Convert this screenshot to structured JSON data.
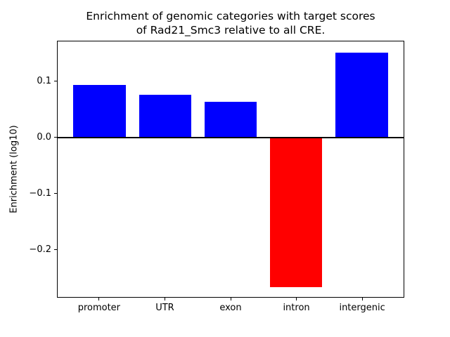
{
  "chart_data": {
    "type": "bar",
    "title": "Enrichment of genomic categories with target scores\nof Rad21_Smc3 relative to all CRE.",
    "title_lines": [
      "Enrichment of genomic categories with target scores",
      "of Rad21_Smc3 relative to all CRE."
    ],
    "xlabel": "",
    "ylabel": "Enrichment (log10)",
    "categories": [
      "promoter",
      "UTR",
      "exon",
      "intron",
      "intergenic"
    ],
    "values": [
      0.094,
      0.076,
      0.064,
      -0.267,
      0.152
    ],
    "bar_colors": [
      "#0000ff",
      "#0000ff",
      "#0000ff",
      "#ff0000",
      "#0000ff"
    ],
    "positive_color": "#0000ff",
    "negative_color": "#ff0000",
    "ylim": [
      -0.285,
      0.172
    ],
    "xlim": [
      -0.64,
      4.64
    ],
    "bar_width": 0.8,
    "yticks": [
      {
        "value": 0.1,
        "label": "0.1"
      },
      {
        "value": 0.0,
        "label": "0.0"
      },
      {
        "value": -0.1,
        "label": "−0.1"
      },
      {
        "value": -0.2,
        "label": "−0.2"
      }
    ],
    "zero_line": true,
    "grid": false,
    "legend": false,
    "axis_color": "#000000",
    "background": "#ffffff"
  }
}
